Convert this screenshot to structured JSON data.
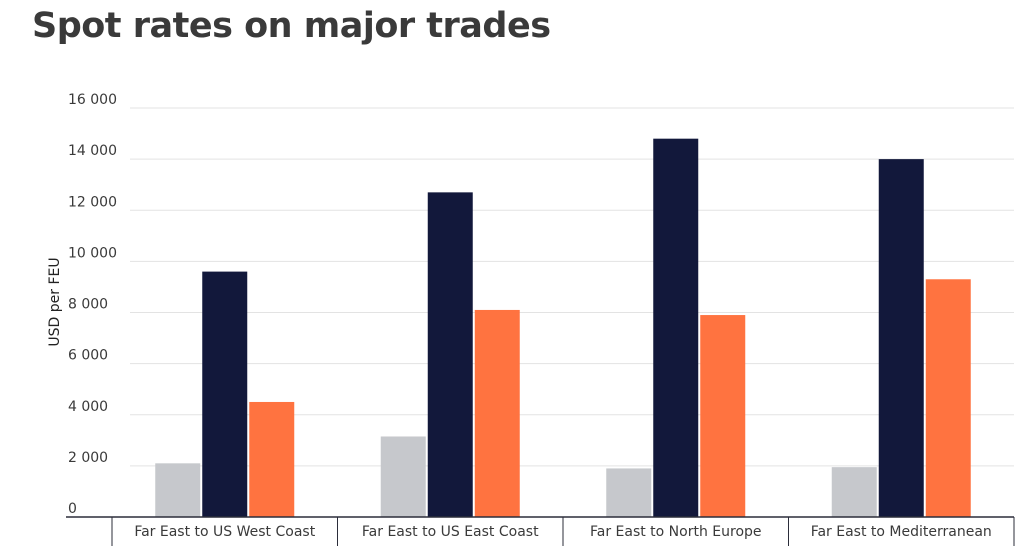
{
  "chart_data": {
    "type": "bar",
    "title": "Spot rates on major trades",
    "ylabel": "USD per FEU",
    "xlabel": "",
    "ylim": [
      0,
      16000
    ],
    "y_ticks": [
      "0",
      "2 000",
      "4 000",
      "6 000",
      "8 000",
      "10 000",
      "12 000",
      "14 000",
      "16 000"
    ],
    "categories": [
      "Far East to US West Coast",
      "Far East to US East Coast",
      "Far East to North Europe",
      "Far East to Mediterranean"
    ],
    "grid": true,
    "legend": "none",
    "series": [
      {
        "values": [
          2100,
          3150,
          1900,
          1950
        ],
        "color": "#c6c8cc"
      },
      {
        "values": [
          9600,
          12700,
          14800,
          14000
        ],
        "color": "#12183b"
      },
      {
        "values": [
          4500,
          8100,
          7900,
          9300
        ],
        "color": "#ff7340"
      }
    ]
  }
}
